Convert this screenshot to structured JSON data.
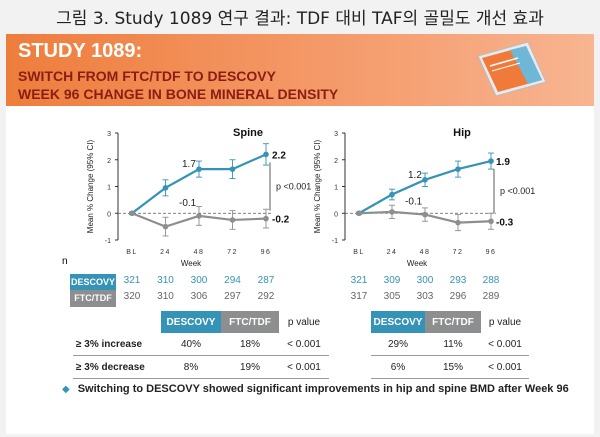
{
  "figure_title": "그림 3. Study 1089 연구 결과: TDF 대비 TAF의 골밀도 개선 효과",
  "banner": {
    "line1": "STUDY 1089:",
    "line2": "SWITCH FROM FTC/TDF TO DESCOVY",
    "line3": "WEEK 96 CHANGE IN BONE MINERAL DENSITY"
  },
  "colors": {
    "descovy": "#3593b7",
    "ftc_tdf": "#8d8e90",
    "banner": "#ee7d3c"
  },
  "y_axis_label": "Mean % Change (95% CI)",
  "x_axis_label": "Week",
  "n_label": "n",
  "chart_data": [
    {
      "type": "line",
      "title": "Spine",
      "categories": [
        "BL",
        "24",
        "48",
        "72",
        "96"
      ],
      "xlabel": "Week",
      "ylabel": "Mean % Change (95% CI)",
      "ylim": [
        -1,
        3
      ],
      "yticks": [
        "-1",
        "0",
        "1",
        "2",
        "3"
      ],
      "series": [
        {
          "name": "DESCOVY",
          "values": [
            0,
            0.95,
            1.65,
            1.65,
            2.2
          ],
          "err": [
            0.05,
            0.3,
            0.3,
            0.35,
            0.4
          ]
        },
        {
          "name": "FTC/TDF",
          "values": [
            0,
            -0.5,
            -0.1,
            -0.25,
            -0.2
          ],
          "err": [
            0.05,
            0.35,
            0.35,
            0.35,
            0.35
          ]
        }
      ],
      "annotations": {
        "descovy_mid": "1.7",
        "ftc_mid": "-0.1",
        "descovy_end": "2.2",
        "ftc_end": "-0.2",
        "pvalue": "p <0.001"
      },
      "n_descovy": [
        "321",
        "310",
        "300",
        "294",
        "287"
      ],
      "n_ftc": [
        "320",
        "310",
        "306",
        "297",
        "292"
      ]
    },
    {
      "type": "line",
      "title": "Hip",
      "categories": [
        "BL",
        "24",
        "48",
        "72",
        "96"
      ],
      "xlabel": "Week",
      "ylabel": "Mean % Change (95% CI)",
      "ylim": [
        -1,
        3
      ],
      "yticks": [
        "-1",
        "0",
        "1",
        "2",
        "3"
      ],
      "series": [
        {
          "name": "DESCOVY",
          "values": [
            0,
            0.7,
            1.25,
            1.65,
            1.95
          ],
          "err": [
            0.05,
            0.2,
            0.25,
            0.3,
            0.3
          ]
        },
        {
          "name": "FTC/TDF",
          "values": [
            0,
            0.05,
            -0.05,
            -0.35,
            -0.3
          ],
          "err": [
            0.05,
            0.25,
            0.25,
            0.3,
            0.3
          ]
        }
      ],
      "annotations": {
        "descovy_mid": "1.2",
        "ftc_mid": "-0.1",
        "descovy_end": "1.9",
        "ftc_end": "-0.3",
        "pvalue": "p <0.001"
      },
      "n_descovy": [
        "321",
        "309",
        "300",
        "293",
        "288"
      ],
      "n_ftc": [
        "317",
        "305",
        "303",
        "296",
        "289"
      ]
    }
  ],
  "tags": {
    "descovy": "DESCOVY",
    "ftc_tdf": "FTC/TDF"
  },
  "stats_tables": [
    {
      "headers": [
        "DESCOVY",
        "FTC/TDF",
        "p value"
      ],
      "rows": [
        {
          "label": "≥ 3% increase",
          "descovy": "40%",
          "ftc": "18%",
          "p": "< 0.001"
        },
        {
          "label": "≥ 3% decrease",
          "descovy": "8%",
          "ftc": "19%",
          "p": "< 0.001"
        }
      ]
    },
    {
      "headers": [
        "DESCOVY",
        "FTC/TDF",
        "p value"
      ],
      "rows": [
        {
          "descovy": "29%",
          "ftc": "11%",
          "p": "< 0.001"
        },
        {
          "descovy": "6%",
          "ftc": "15%",
          "p": "< 0.001"
        }
      ]
    }
  ],
  "footer": "Switching to DESCOVY showed significant  improvements in hip and spine BMD after Week 96"
}
